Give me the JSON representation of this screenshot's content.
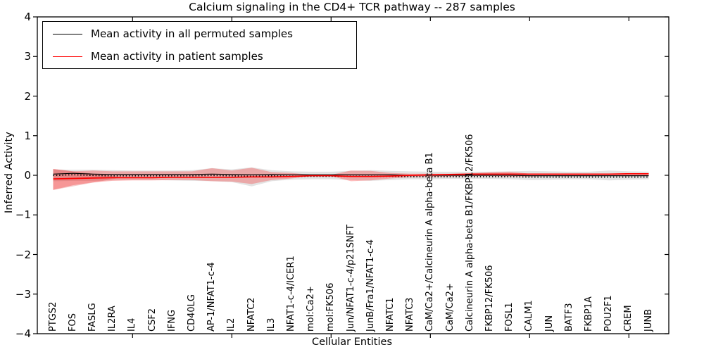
{
  "title": "Calcium signaling in the CD4+ TCR pathway -- 287 samples",
  "legend": {
    "items": [
      {
        "label": "Mean activity in all permuted samples",
        "color": "#000000"
      },
      {
        "label": "Mean activity in patient samples",
        "color": "#ff0000"
      }
    ]
  },
  "chart_data": {
    "type": "line",
    "title": "Calcium signaling in the CD4+ TCR pathway -- 287 samples",
    "xlabel": "Cellular Entities",
    "ylabel": "Inferred Activity",
    "ylim": [
      -4,
      4
    ],
    "yticks": [
      4,
      3,
      2,
      1,
      0,
      -1,
      -2,
      -3,
      -4
    ],
    "grid": false,
    "legend_position": "upper left",
    "categories": [
      "PTGS2",
      "FOS",
      "FASLG",
      "IL2RA",
      "IL4",
      "CSF2",
      "IFNG",
      "CD40LG",
      "AP-1/NFAT1-c-4",
      "IL2",
      "NFATC2",
      "IL3",
      "NFAT1-c-4/ICER1",
      "mol:Ca2+",
      "mol:FK506",
      "Jun/NFAT1-c-4/p21SNFT",
      "JunB/Fra1/NFAT1-c-4",
      "NFATC1",
      "NFATC3",
      "CaM/Ca2+/Calcineurin A alpha-beta B1",
      "CaM/Ca2+",
      "Calcineurin A alpha-beta B1/FKBP12/FK506",
      "FKBP12/FK506",
      "FOSL1",
      "CALM1",
      "JUN",
      "BATF3",
      "FKBP1A",
      "POU2F1",
      "CREM",
      "JUNB"
    ],
    "xtick_mark_indices": [
      4,
      9,
      14,
      19,
      24,
      29
    ],
    "series": [
      {
        "name": "Mean activity in all permuted samples",
        "color": "#000000",
        "style": "solid",
        "values": [
          0.03,
          0.05,
          0.03,
          0.02,
          0.02,
          0.02,
          0.02,
          0.02,
          0.03,
          0.02,
          0.01,
          0.02,
          0.01,
          0.01,
          0.01,
          0.01,
          0.01,
          0.01,
          0.0,
          0.0,
          0.0,
          0.0,
          0.0,
          0.0,
          -0.01,
          -0.01,
          -0.01,
          -0.01,
          -0.01,
          -0.01,
          -0.01
        ]
      },
      {
        "name": "Mean activity in patient samples",
        "color": "#ff0000",
        "style": "solid",
        "values": [
          -0.09,
          -0.08,
          -0.07,
          -0.06,
          -0.06,
          -0.06,
          -0.05,
          -0.05,
          -0.05,
          -0.05,
          -0.04,
          -0.04,
          -0.03,
          -0.01,
          -0.01,
          -0.03,
          -0.03,
          -0.02,
          0.0,
          0.01,
          0.02,
          0.03,
          0.03,
          0.03,
          0.03,
          0.03,
          0.03,
          0.03,
          0.03,
          0.04,
          0.04
        ]
      }
    ],
    "dotted_companion": {
      "color": "#000000",
      "offset": -0.035,
      "dash": "1.5 2.8"
    },
    "bands": [
      {
        "name": "permuted-samples-band",
        "color": "rgba(80,80,80,0.16)",
        "upper": [
          0.15,
          0.14,
          0.14,
          0.13,
          0.12,
          0.12,
          0.12,
          0.13,
          0.18,
          0.15,
          0.2,
          0.13,
          0.1,
          0.09,
          0.09,
          0.11,
          0.13,
          0.11,
          0.1,
          0.09,
          0.09,
          0.09,
          0.09,
          0.1,
          0.11,
          0.1,
          0.09,
          0.09,
          0.12,
          0.1,
          0.09
        ],
        "lower": [
          -0.15,
          -0.14,
          -0.14,
          -0.13,
          -0.12,
          -0.12,
          -0.13,
          -0.14,
          -0.15,
          -0.17,
          -0.28,
          -0.15,
          -0.11,
          -0.1,
          -0.1,
          -0.12,
          -0.14,
          -0.12,
          -0.1,
          -0.1,
          -0.09,
          -0.09,
          -0.09,
          -0.1,
          -0.12,
          -0.11,
          -0.1,
          -0.1,
          -0.13,
          -0.11,
          -0.1
        ]
      },
      {
        "name": "patient-samples-band",
        "color": "rgba(255,0,0,0.26)",
        "upper": [
          0.16,
          0.1,
          0.12,
          0.1,
          0.1,
          0.1,
          0.1,
          0.1,
          0.18,
          0.12,
          0.19,
          0.08,
          0.06,
          0.015,
          0.015,
          0.12,
          0.11,
          0.06,
          0.04,
          0.04,
          0.04,
          0.05,
          0.08,
          0.09,
          0.04,
          0.03,
          0.03,
          0.03,
          0.03,
          0.03,
          0.05
        ],
        "lower": [
          -0.37,
          -0.25,
          -0.18,
          -0.14,
          -0.13,
          -0.13,
          -0.12,
          -0.12,
          -0.15,
          -0.16,
          -0.22,
          -0.12,
          -0.08,
          -0.02,
          -0.02,
          -0.15,
          -0.13,
          -0.08,
          -0.05,
          -0.04,
          -0.03,
          -0.02,
          -0.02,
          -0.03,
          -0.03,
          -0.02,
          -0.02,
          -0.02,
          -0.02,
          -0.01,
          -0.01
        ]
      }
    ],
    "overlay_wedge": {
      "color": "rgba(210,0,0,0.20)",
      "x_start_index": 0,
      "x_apex_index": 3.5,
      "top": 0.16,
      "bottom": -0.37,
      "apex": -0.05
    }
  },
  "colors": {
    "spine": "#000000",
    "background": "#ffffff",
    "permuted_line": "#000000",
    "patient_line": "#ff0000"
  }
}
